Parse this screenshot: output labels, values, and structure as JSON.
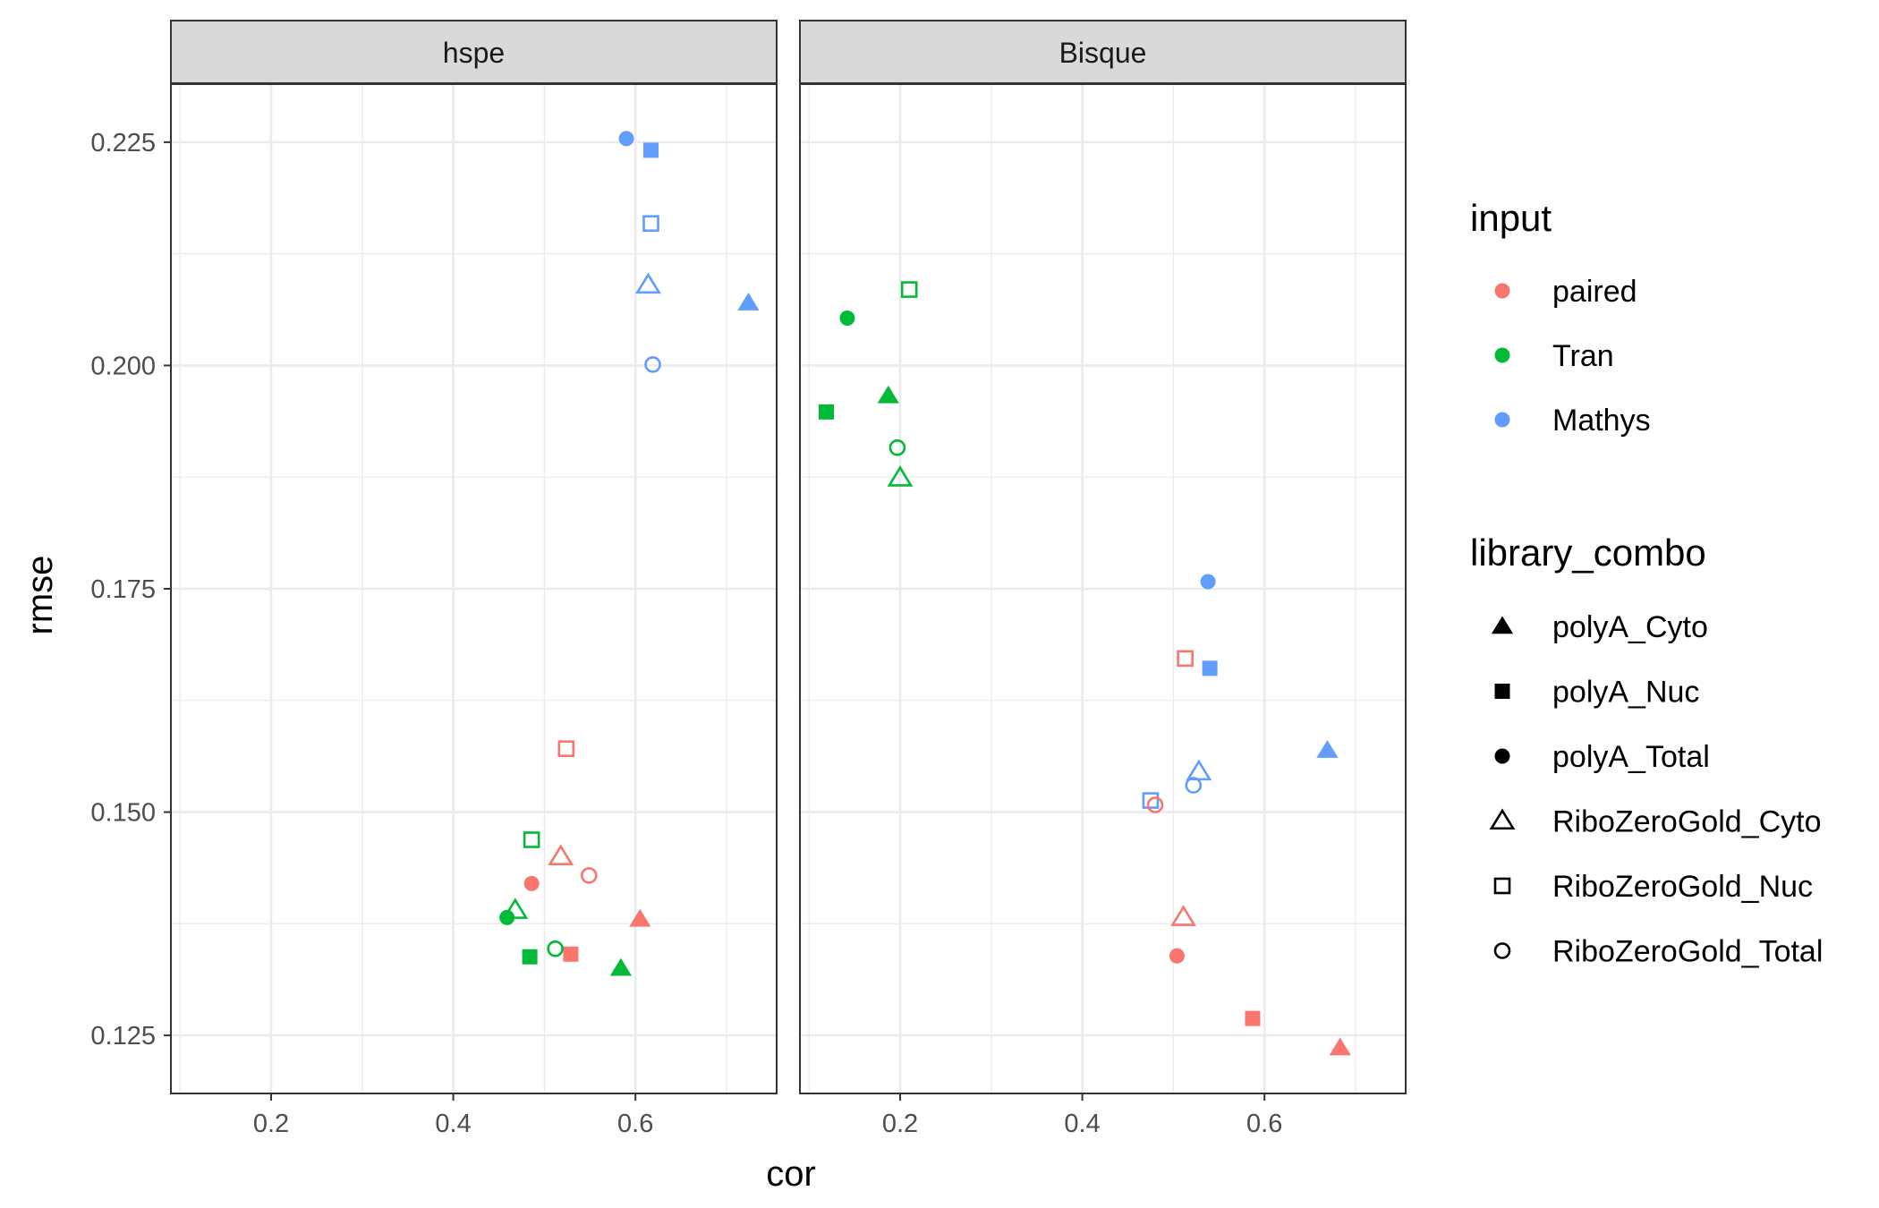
{
  "chart_data": {
    "type": "scatter",
    "xlabel": "cor",
    "ylabel": "rmse",
    "xlim": [
      0.09,
      0.755
    ],
    "ylim": [
      0.1185,
      0.2315
    ],
    "x_ticks": [
      0.2,
      0.4,
      0.6
    ],
    "x_tick_labels": [
      "0.2",
      "0.4",
      "0.6"
    ],
    "y_ticks": [
      0.125,
      0.15,
      0.175,
      0.2,
      0.225
    ],
    "y_tick_labels": [
      "0.125",
      "0.150",
      "0.175",
      "0.200",
      "0.225"
    ],
    "grid": true,
    "legend_position": "right",
    "input_colors": {
      "paired": "#F8766D",
      "Tran": "#00BA38",
      "Mathys": "#619CFF"
    },
    "legend": {
      "input": {
        "title": "input",
        "entries": [
          {
            "label": "paired",
            "color": "#F8766D"
          },
          {
            "label": "Tran",
            "color": "#00BA38"
          },
          {
            "label": "Mathys",
            "color": "#619CFF"
          }
        ]
      },
      "library_combo": {
        "title": "library_combo",
        "entries": [
          {
            "label": "polyA_Cyto",
            "shape": "triangle-filled"
          },
          {
            "label": "polyA_Nuc",
            "shape": "square-filled"
          },
          {
            "label": "polyA_Total",
            "shape": "circle-filled"
          },
          {
            "label": "RiboZeroGold_Cyto",
            "shape": "triangle-open"
          },
          {
            "label": "RiboZeroGold_Nuc",
            "shape": "square-open"
          },
          {
            "label": "RiboZeroGold_Total",
            "shape": "circle-open"
          }
        ]
      }
    },
    "panels": [
      {
        "title": "hspe",
        "points": [
          {
            "input": "Mathys",
            "library_combo": "polyA_Total",
            "cor": 0.59,
            "rmse": 0.2254
          },
          {
            "input": "Mathys",
            "library_combo": "polyA_Nuc",
            "cor": 0.617,
            "rmse": 0.2241
          },
          {
            "input": "Mathys",
            "library_combo": "RiboZeroGold_Nuc",
            "cor": 0.617,
            "rmse": 0.2159
          },
          {
            "input": "Mathys",
            "library_combo": "RiboZeroGold_Cyto",
            "cor": 0.614,
            "rmse": 0.209
          },
          {
            "input": "Mathys",
            "library_combo": "polyA_Cyto",
            "cor": 0.724,
            "rmse": 0.207
          },
          {
            "input": "Mathys",
            "library_combo": "RiboZeroGold_Total",
            "cor": 0.619,
            "rmse": 0.2001
          },
          {
            "input": "paired",
            "library_combo": "RiboZeroGold_Nuc",
            "cor": 0.524,
            "rmse": 0.1571
          },
          {
            "input": "paired",
            "library_combo": "RiboZeroGold_Cyto",
            "cor": 0.518,
            "rmse": 0.145
          },
          {
            "input": "paired",
            "library_combo": "RiboZeroGold_Total",
            "cor": 0.549,
            "rmse": 0.1429
          },
          {
            "input": "paired",
            "library_combo": "polyA_Total",
            "cor": 0.486,
            "rmse": 0.142
          },
          {
            "input": "paired",
            "library_combo": "polyA_Cyto",
            "cor": 0.605,
            "rmse": 0.138
          },
          {
            "input": "paired",
            "library_combo": "polyA_Nuc",
            "cor": 0.529,
            "rmse": 0.1341
          },
          {
            "input": "Tran",
            "library_combo": "RiboZeroGold_Nuc",
            "cor": 0.486,
            "rmse": 0.1469
          },
          {
            "input": "Tran",
            "library_combo": "RiboZeroGold_Cyto",
            "cor": 0.468,
            "rmse": 0.139
          },
          {
            "input": "Tran",
            "library_combo": "polyA_Total",
            "cor": 0.459,
            "rmse": 0.1382
          },
          {
            "input": "Tran",
            "library_combo": "RiboZeroGold_Total",
            "cor": 0.512,
            "rmse": 0.1347
          },
          {
            "input": "Tran",
            "library_combo": "polyA_Nuc",
            "cor": 0.484,
            "rmse": 0.1338
          },
          {
            "input": "Tran",
            "library_combo": "polyA_Cyto",
            "cor": 0.584,
            "rmse": 0.1325
          }
        ]
      },
      {
        "title": "Bisque",
        "points": [
          {
            "input": "Tran",
            "library_combo": "RiboZeroGold_Nuc",
            "cor": 0.21,
            "rmse": 0.2085
          },
          {
            "input": "Tran",
            "library_combo": "polyA_Total",
            "cor": 0.142,
            "rmse": 0.2053
          },
          {
            "input": "Tran",
            "library_combo": "polyA_Cyto",
            "cor": 0.187,
            "rmse": 0.1966
          },
          {
            "input": "Tran",
            "library_combo": "polyA_Nuc",
            "cor": 0.119,
            "rmse": 0.1948
          },
          {
            "input": "Tran",
            "library_combo": "RiboZeroGold_Total",
            "cor": 0.197,
            "rmse": 0.1908
          },
          {
            "input": "Tran",
            "library_combo": "RiboZeroGold_Cyto",
            "cor": 0.2,
            "rmse": 0.1874
          },
          {
            "input": "Mathys",
            "library_combo": "polyA_Total",
            "cor": 0.538,
            "rmse": 0.1758
          },
          {
            "input": "Mathys",
            "library_combo": "polyA_Nuc",
            "cor": 0.54,
            "rmse": 0.1661
          },
          {
            "input": "Mathys",
            "library_combo": "polyA_Cyto",
            "cor": 0.669,
            "rmse": 0.1569
          },
          {
            "input": "Mathys",
            "library_combo": "RiboZeroGold_Cyto",
            "cor": 0.528,
            "rmse": 0.1545
          },
          {
            "input": "Mathys",
            "library_combo": "RiboZeroGold_Total",
            "cor": 0.522,
            "rmse": 0.153
          },
          {
            "input": "Mathys",
            "library_combo": "RiboZeroGold_Nuc",
            "cor": 0.475,
            "rmse": 0.1513
          },
          {
            "input": "paired",
            "library_combo": "RiboZeroGold_Nuc",
            "cor": 0.513,
            "rmse": 0.1672
          },
          {
            "input": "paired",
            "library_combo": "RiboZeroGold_Total",
            "cor": 0.48,
            "rmse": 0.1508
          },
          {
            "input": "paired",
            "library_combo": "RiboZeroGold_Cyto",
            "cor": 0.511,
            "rmse": 0.1382
          },
          {
            "input": "paired",
            "library_combo": "polyA_Total",
            "cor": 0.504,
            "rmse": 0.1339
          },
          {
            "input": "paired",
            "library_combo": "polyA_Nuc",
            "cor": 0.587,
            "rmse": 0.1269
          },
          {
            "input": "paired",
            "library_combo": "polyA_Cyto",
            "cor": 0.683,
            "rmse": 0.1236
          }
        ]
      }
    ]
  }
}
